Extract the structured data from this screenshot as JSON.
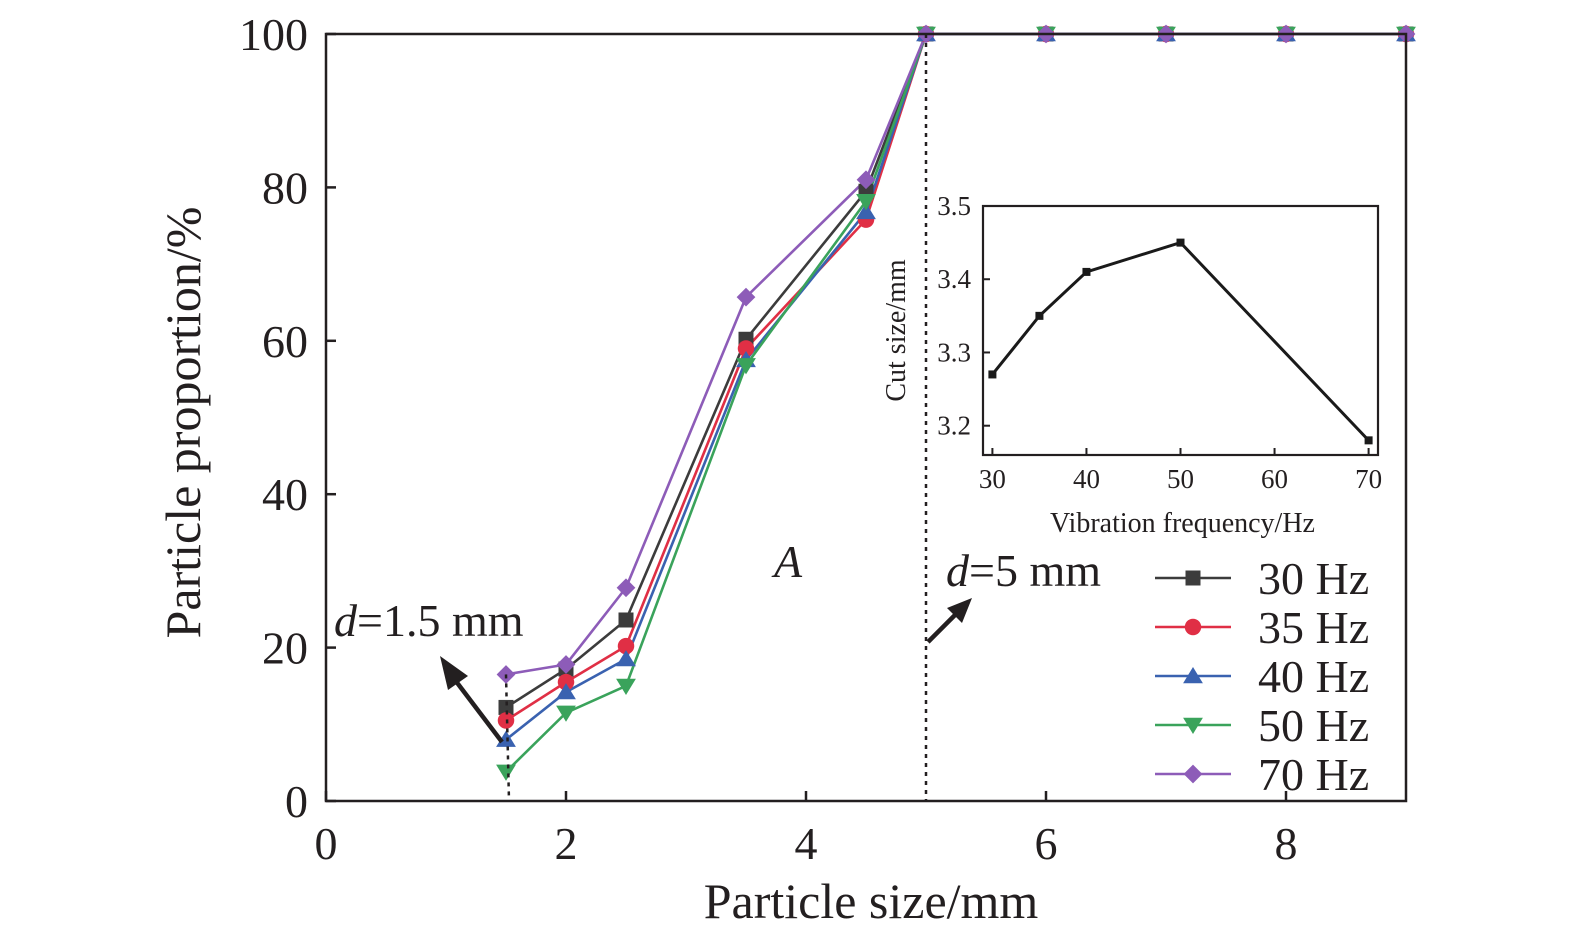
{
  "chart_data": [
    {
      "type": "line",
      "title": "",
      "xlabel": "Particle size/mm",
      "ylabel": "Particle proportion/%",
      "xlim": [
        0,
        9
      ],
      "ylim": [
        0,
        100
      ],
      "xticks": [
        0,
        2,
        4,
        6,
        8
      ],
      "yticks": [
        0,
        20,
        40,
        60,
        80,
        100
      ],
      "grid": false,
      "legend_position": "bottom-right",
      "x": [
        1.5,
        2,
        2.5,
        3.5,
        4.5,
        5,
        6,
        7,
        8,
        9
      ],
      "series": [
        {
          "name": "30 Hz",
          "marker": "square",
          "color": "#3c3c3c",
          "values": [
            12.2,
            17.2,
            23.6,
            60.2,
            79.5,
            100,
            100,
            100,
            100,
            100
          ]
        },
        {
          "name": "35 Hz",
          "marker": "circle",
          "color": "#e02f45",
          "values": [
            10.5,
            15.5,
            20.2,
            59.0,
            75.8,
            100,
            100,
            100,
            100,
            100
          ]
        },
        {
          "name": "40 Hz",
          "marker": "triangle-up",
          "color": "#3a62b0",
          "values": [
            8.0,
            14.2,
            18.5,
            57.5,
            76.8,
            100,
            100,
            100,
            100,
            100
          ]
        },
        {
          "name": "50 Hz",
          "marker": "triangle-down",
          "color": "#3aa35b",
          "values": [
            3.8,
            11.5,
            15.0,
            56.8,
            78.2,
            100,
            100,
            100,
            100,
            100
          ]
        },
        {
          "name": "70 Hz",
          "marker": "diamond",
          "color": "#8d5cb8",
          "values": [
            16.5,
            17.8,
            27.8,
            65.7,
            81.0,
            100,
            100,
            100,
            100,
            100
          ]
        }
      ],
      "annotations": [
        {
          "text_italic": "d",
          "text": "=1.5 mm",
          "x": 1.5
        },
        {
          "text_italic": "d",
          "text": "=5 mm",
          "x": 5
        },
        {
          "text_italic": "A",
          "text": ""
        }
      ]
    },
    {
      "type": "line",
      "title": "",
      "xlabel": "Vibration frequency/Hz",
      "ylabel": "Cut size/mm",
      "xlim": [
        29,
        71
      ],
      "ylim": [
        3.16,
        3.5
      ],
      "xticks": [
        30,
        40,
        50,
        60,
        70
      ],
      "yticks": [
        3.2,
        3.3,
        3.4,
        3.5
      ],
      "ytick_labels": [
        "3.2",
        "3.3",
        "3.4",
        "3.5"
      ],
      "grid": false,
      "x": [
        30,
        35,
        40,
        50,
        70
      ],
      "series": [
        {
          "marker": "square",
          "color": "#1a1a1a",
          "values": [
            3.27,
            3.35,
            3.41,
            3.45,
            3.18
          ]
        }
      ]
    }
  ]
}
